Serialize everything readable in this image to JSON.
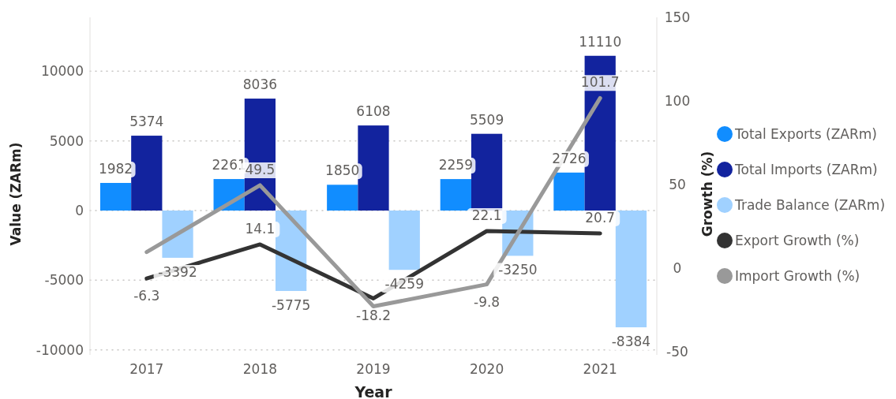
{
  "chart_data": {
    "type": "bar",
    "xlabel": "Year",
    "ylabel": "Value (ZARm)",
    "y2label": "Growth (%)",
    "categories": [
      "2017",
      "2018",
      "2019",
      "2020",
      "2021"
    ],
    "series": [
      {
        "name": "Total Exports (ZARm)",
        "color": "#118dff",
        "values": [
          1982,
          2261,
          1850,
          2259,
          2726
        ],
        "value_labels": [
          "1982",
          "2261",
          "1850",
          "2259",
          "2726"
        ]
      },
      {
        "name": "Total Imports (ZARm)",
        "color": "#12239e",
        "values": [
          5374,
          8036,
          6108,
          5509,
          11110
        ],
        "value_labels": [
          "5374",
          "8036",
          "6108",
          "5509",
          "11110"
        ]
      },
      {
        "name": "Trade Balance (ZARm)",
        "color": "#a0d1ff",
        "values": [
          -3392,
          -5775,
          -4259,
          -3250,
          -8384
        ],
        "value_labels": [
          "-3392",
          "-5775",
          "-4259",
          "-3250",
          "-8384"
        ]
      },
      {
        "name": "Export Growth (%)",
        "type": "line",
        "axis": "y2",
        "color": "#333333",
        "values": [
          -6.3,
          14.1,
          -18.2,
          22.1,
          20.7
        ],
        "value_labels": [
          "-6.3",
          "14.1",
          "-18.2",
          "22.1",
          "20.7"
        ]
      },
      {
        "name": "Import Growth (%)",
        "type": "line",
        "axis": "y2",
        "color": "#999999",
        "values": [
          9.5,
          49.5,
          -23,
          -9.8,
          101.7
        ],
        "value_labels": [
          null,
          "49.5",
          null,
          "-9.8",
          "101.7"
        ]
      }
    ],
    "ylim": [
      -10360,
      13870
    ],
    "yticks": [
      -10000,
      -5000,
      0,
      5000,
      10000
    ],
    "y2lim": [
      -52,
      150
    ],
    "y2ticks": [
      -50,
      0,
      50,
      100,
      150
    ],
    "grid": "y",
    "legend": "right",
    "marker": "none",
    "line_style": "solid"
  }
}
